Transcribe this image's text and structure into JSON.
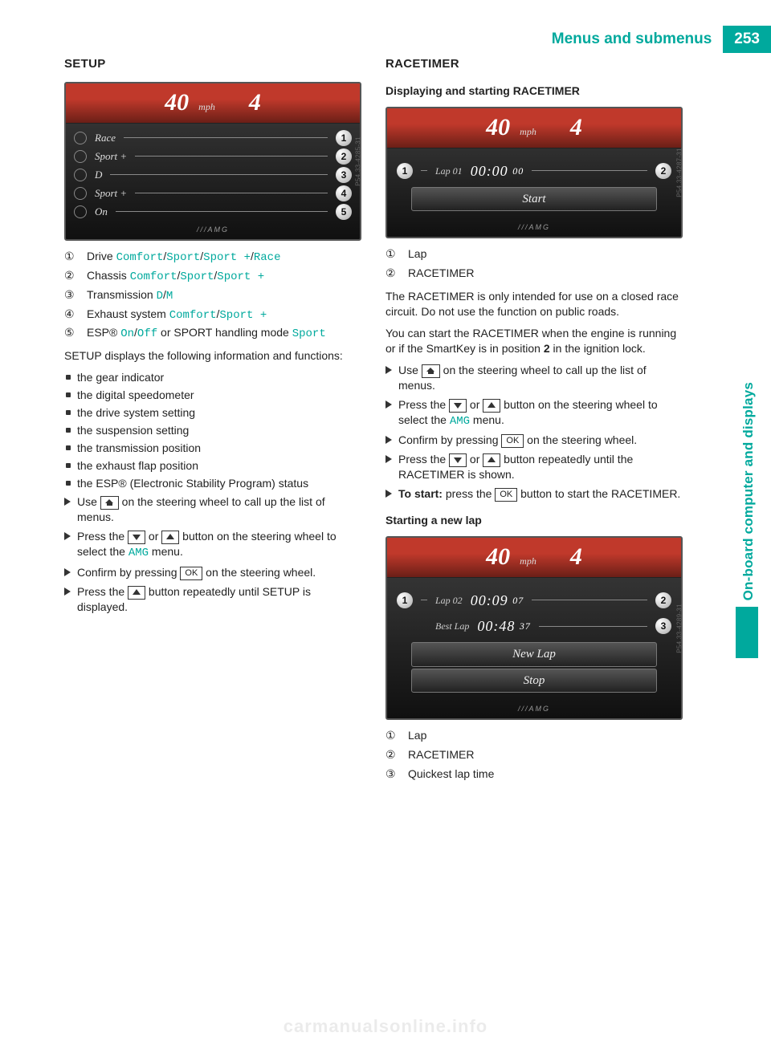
{
  "header": {
    "title": "Menus and submenus",
    "page_number": "253"
  },
  "sidetab": {
    "section": "On-board computer and displays",
    "color": "#00a99d"
  },
  "watermark": "carmanualsonline.info",
  "left": {
    "h2": "SETUP",
    "display": {
      "speed": "40",
      "unit": "mph",
      "gear": "4",
      "rows": [
        {
          "label": "Race",
          "num": "1"
        },
        {
          "label": "Sport +",
          "num": "2"
        },
        {
          "label": "D",
          "num": "3"
        },
        {
          "label": "Sport +",
          "num": "4"
        },
        {
          "label": "On",
          "num": "5"
        }
      ],
      "sidecode": "P54.33-4285-31"
    },
    "defs": [
      {
        "n": "①",
        "pre": "Drive ",
        "opts": [
          "Comfort",
          "Sport",
          "Sport +",
          "Race"
        ]
      },
      {
        "n": "②",
        "pre": "Chassis ",
        "opts": [
          "Comfort",
          "Sport",
          "Sport +"
        ]
      },
      {
        "n": "③",
        "pre": "Transmission ",
        "opts": [
          "D",
          "M"
        ]
      },
      {
        "n": "④",
        "pre": "Exhaust system ",
        "opts": [
          "Comfort",
          "Sport +"
        ]
      },
      {
        "n": "⑤",
        "pre": "ESP® ",
        "opts": [
          "On",
          "Off"
        ],
        "post1": " or SPORT handling mode ",
        "post2": "Sport"
      }
    ],
    "intro": "SETUP displays the following information and functions:",
    "bullets": [
      "the gear indicator",
      "the digital speedometer",
      "the drive system setting",
      "the suspension setting",
      "the transmission position",
      "the exhaust flap position",
      "the ESP® (Electronic Stability Program) status"
    ],
    "steps": {
      "s1a": "Use ",
      "s1b": " on the steering wheel to call up the list of menus.",
      "s2a": "Press the ",
      "s2b": " or ",
      "s2c": " button on the steering wheel to select the ",
      "s2d": "AMG",
      "s2e": " menu.",
      "s3a": "Confirm by pressing ",
      "s3b": " on the steering wheel.",
      "s4a": "Press the ",
      "s4b": " button repeatedly until SETUP is displayed.",
      "ok": "OK"
    }
  },
  "right": {
    "h2": "RACETIMER",
    "h3a": "Displaying and starting RACETIMER",
    "display1": {
      "speed": "40",
      "unit": "mph",
      "gear": "4",
      "lap_label": "Lap 01",
      "time": "00:00",
      "sub": "00",
      "numL": "1",
      "numR": "2",
      "btn": "Start",
      "sidecode": "P54.33-4287-31"
    },
    "defs1": [
      {
        "n": "①",
        "t": "Lap"
      },
      {
        "n": "②",
        "t": "RACETIMER"
      }
    ],
    "p1": "The RACETIMER is only intended for use on a closed race circuit. Do not use the function on public roads.",
    "p2a": "You can start the RACETIMER when the engine is running or if the SmartKey is in position ",
    "p2b": "2",
    "p2c": " in the ignition lock.",
    "steps": {
      "s1a": "Use ",
      "s1b": " on the steering wheel to call up the list of menus.",
      "s2a": "Press the ",
      "s2b": " or ",
      "s2c": " button on the steering wheel to select the ",
      "s2d": "AMG",
      "s2e": " menu.",
      "s3a": "Confirm by pressing ",
      "s3b": " on the steering wheel.",
      "s4a": "Press the ",
      "s4b": " or ",
      "s4c": " button repeatedly until the RACETIMER is shown.",
      "s5a": "To start:",
      "s5b": " press the ",
      "s5c": " button to start the RACETIMER.",
      "ok": "OK"
    },
    "h3b": "Starting a new lap",
    "display2": {
      "speed": "40",
      "unit": "mph",
      "gear": "4",
      "r1_label": "Lap 02",
      "r1_time": "00:09",
      "r1_sub": "07",
      "r2_label": "Best Lap",
      "r2_time": "00:48",
      "r2_sub": "37",
      "numL": "1",
      "numR": "2",
      "num3": "3",
      "btn1": "New Lap",
      "btn2": "Stop",
      "sidecode": "P54.33-4289-31"
    },
    "defs2": [
      {
        "n": "①",
        "t": "Lap"
      },
      {
        "n": "②",
        "t": "RACETIMER"
      },
      {
        "n": "③",
        "t": "Quickest lap time"
      }
    ]
  }
}
